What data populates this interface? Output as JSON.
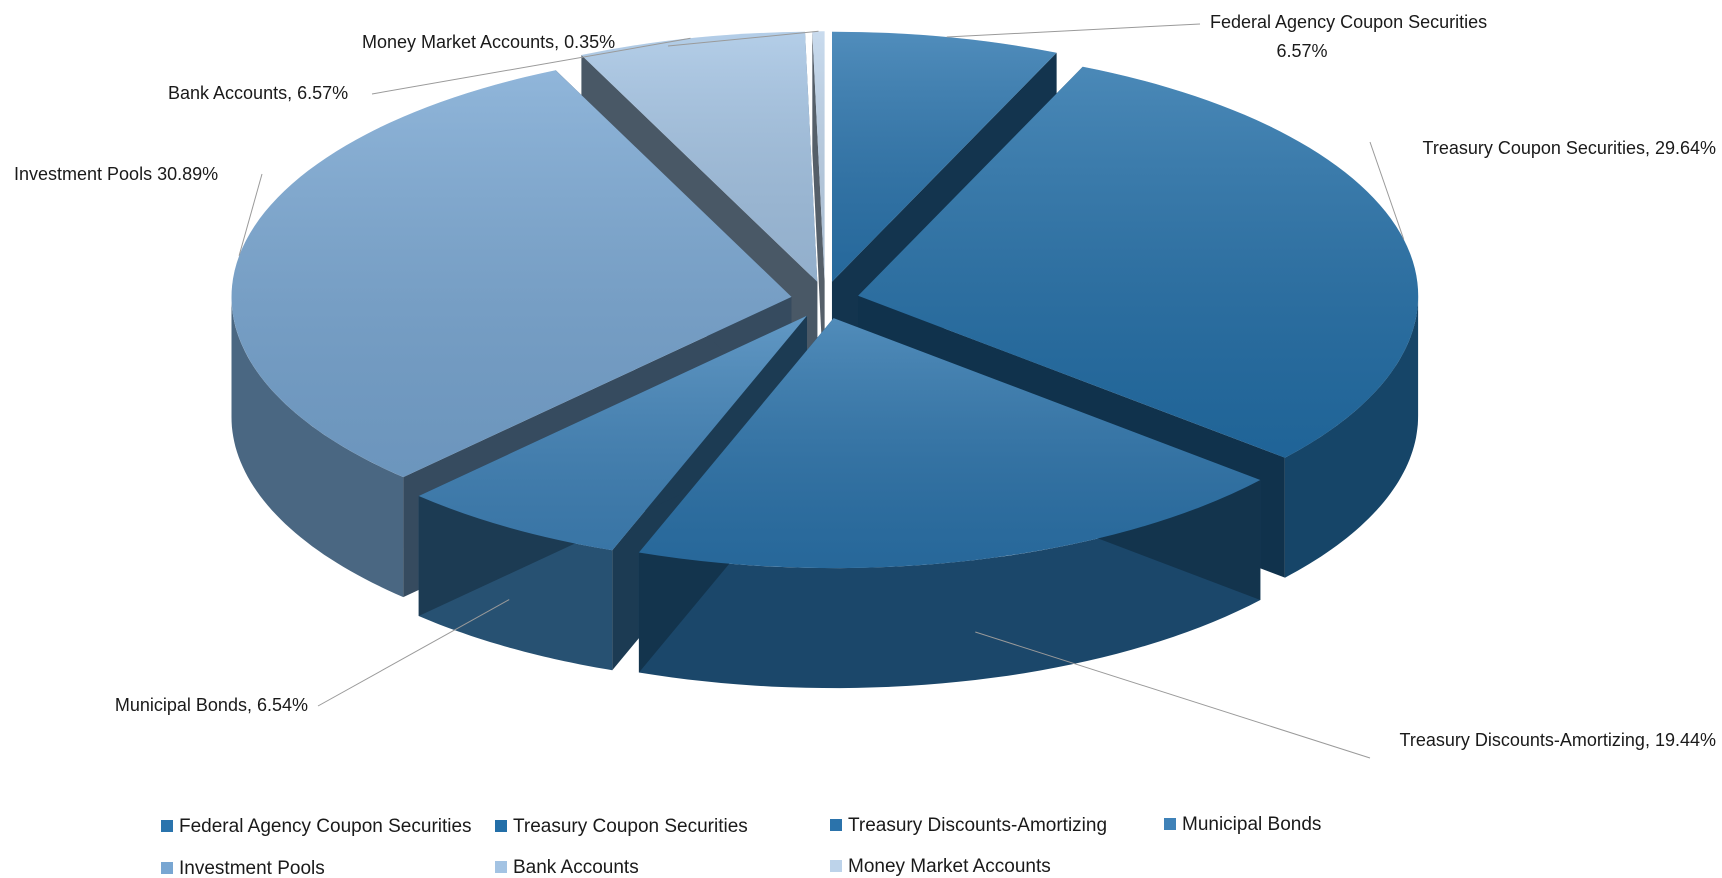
{
  "chart_data": {
    "type": "pie",
    "style": "3d-exploded",
    "series": [
      {
        "name": "Federal Agency Coupon Securities",
        "value": 6.57,
        "label": "Federal Agency Coupon Securities",
        "label_line2": "6.57%",
        "color": "#2a74ad"
      },
      {
        "name": "Treasury Coupon Securities",
        "value": 29.64,
        "label": "Treasury Coupon Securities, 29.64%",
        "color": "#236fa8"
      },
      {
        "name": "Treasury Discounts-Amortizing",
        "value": 19.44,
        "label": "Treasury Discounts-Amortizing, 19.44%",
        "color": "#2b73ab"
      },
      {
        "name": "Municipal Bonds",
        "value": 6.54,
        "label": "Municipal Bonds, 6.54%",
        "color": "#3f82b8"
      },
      {
        "name": "Investment Pools",
        "value": 30.89,
        "label": "Investment Pools 30.89%",
        "color": "#78a6d2"
      },
      {
        "name": "Bank Accounts",
        "value": 6.57,
        "label": "Bank Accounts, 6.57%",
        "color": "#a3c3e3"
      },
      {
        "name": "Money Market Accounts",
        "value": 0.35,
        "label": "Money Market Accounts, 0.35%",
        "color": "#bdd3ea"
      }
    ],
    "legend": {
      "placement": "bottom",
      "entries": [
        "Federal Agency Coupon Securities",
        "Treasury Coupon Securities",
        "Treasury Discounts-Amortizing",
        "Municipal Bonds",
        "Investment Pools",
        "Bank Accounts",
        "Money Market Accounts"
      ]
    }
  }
}
